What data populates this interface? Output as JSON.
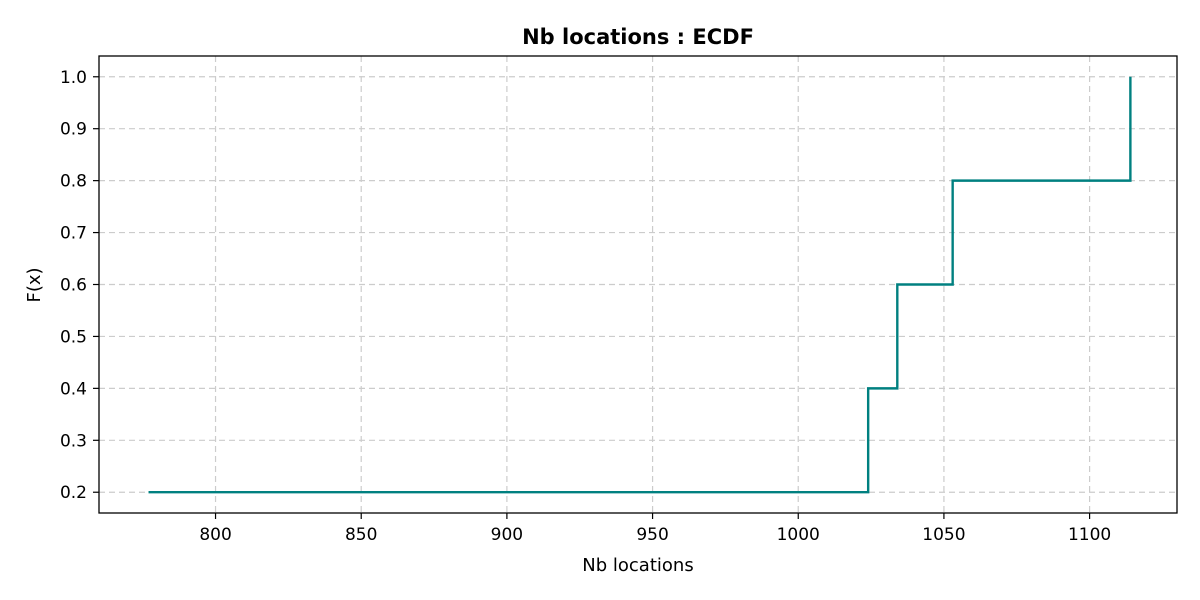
{
  "chart_data": {
    "type": "line",
    "title": "Nb locations : ECDF",
    "xlabel": "Nb locations",
    "ylabel": "F(x)",
    "xlim": [
      760,
      1130
    ],
    "ylim": [
      0.16,
      1.04
    ],
    "xticks": [
      800,
      850,
      900,
      950,
      1000,
      1050,
      1100
    ],
    "yticks": [
      0.2,
      0.3,
      0.4,
      0.5,
      0.6,
      0.7,
      0.8,
      0.9,
      1.0
    ],
    "ytick_labels": [
      "0.2",
      "0.3",
      "0.4",
      "0.5",
      "0.6",
      "0.7",
      "0.8",
      "0.9",
      "1.0"
    ],
    "grid": true,
    "step": "post",
    "series": [
      {
        "color": "#008080",
        "x": [
          777,
          1024,
          1034,
          1053,
          1114,
          1114
        ],
        "y": [
          0.2,
          0.4,
          0.6,
          0.8,
          0.8,
          1.0
        ]
      }
    ]
  }
}
